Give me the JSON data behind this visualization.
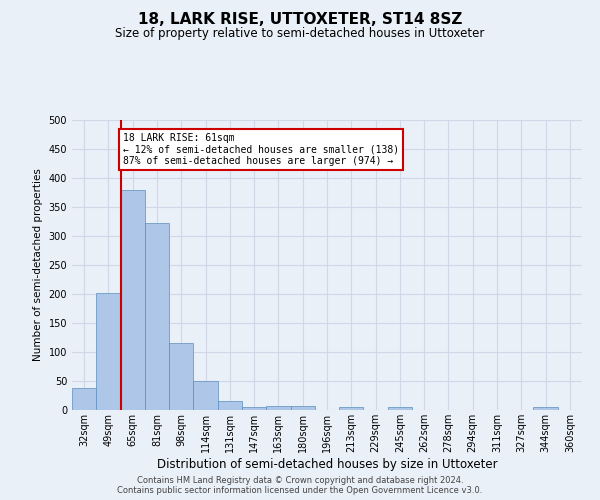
{
  "title": "18, LARK RISE, UTTOXETER, ST14 8SZ",
  "subtitle": "Size of property relative to semi-detached houses in Uttoxeter",
  "xlabel": "Distribution of semi-detached houses by size in Uttoxeter",
  "ylabel": "Number of semi-detached properties",
  "footer_line1": "Contains HM Land Registry data © Crown copyright and database right 2024.",
  "footer_line2": "Contains public sector information licensed under the Open Government Licence v3.0.",
  "categories": [
    "32sqm",
    "49sqm",
    "65sqm",
    "81sqm",
    "98sqm",
    "114sqm",
    "131sqm",
    "147sqm",
    "163sqm",
    "180sqm",
    "196sqm",
    "213sqm",
    "229sqm",
    "245sqm",
    "262sqm",
    "278sqm",
    "294sqm",
    "311sqm",
    "327sqm",
    "344sqm",
    "360sqm"
  ],
  "values": [
    38,
    202,
    380,
    322,
    115,
    50,
    15,
    5,
    7,
    7,
    0,
    5,
    0,
    5,
    0,
    0,
    0,
    0,
    0,
    5,
    0
  ],
  "bar_color": "#aec6e8",
  "bar_edge_color": "#5a8fc0",
  "property_line_x_index": 1.5,
  "annotation_text": "18 LARK RISE: 61sqm\n← 12% of semi-detached houses are smaller (138)\n87% of semi-detached houses are larger (974) →",
  "annotation_box_color": "#ffffff",
  "annotation_box_edge_color": "#cc0000",
  "vline_color": "#cc0000",
  "grid_color": "#d0d8e8",
  "background_color": "#eaf0f8",
  "ylim": [
    0,
    500
  ],
  "xlim_left": -0.5,
  "xlim_right": 20.5,
  "title_fontsize": 11,
  "subtitle_fontsize": 8.5,
  "ylabel_fontsize": 7.5,
  "xlabel_fontsize": 8.5,
  "tick_fontsize": 7,
  "annotation_fontsize": 7,
  "footer_fontsize": 6
}
